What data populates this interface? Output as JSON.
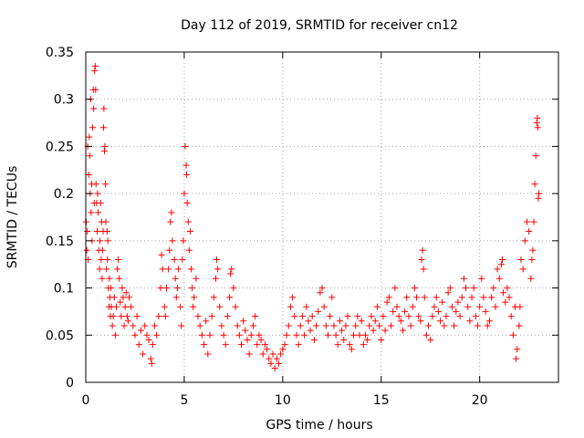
{
  "chart_data": {
    "type": "scatter",
    "title": "Day 112 of 2019, SRMTID for receiver cn12",
    "xlabel": "GPS time / hours",
    "ylabel": "SRMTID / TECUs",
    "xlim": [
      0,
      24
    ],
    "ylim": [
      0,
      0.35
    ],
    "xticks": [
      0,
      5,
      10,
      15,
      20
    ],
    "xtick_labels": [
      "0",
      "5",
      "10",
      "15",
      "20"
    ],
    "yticks": [
      0,
      0.05,
      0.1,
      0.15,
      0.2,
      0.25,
      0.3,
      0.35
    ],
    "ytick_labels": [
      "0",
      "0.05",
      "0.1",
      "0.15",
      "0.2",
      "0.25",
      "0.3",
      "0.35"
    ],
    "grid": true,
    "marker": "+",
    "colors": {
      "series": "#ff0000",
      "grid": "#a0a0a0",
      "axes": "#000000"
    },
    "series": [
      {
        "name": "SRMTID",
        "points": [
          [
            0.02,
            0.17
          ],
          [
            0.05,
            0.14
          ],
          [
            0.08,
            0.16
          ],
          [
            0.1,
            0.25
          ],
          [
            0.12,
            0.13
          ],
          [
            0.15,
            0.22
          ],
          [
            0.18,
            0.26
          ],
          [
            0.2,
            0.24
          ],
          [
            0.22,
            0.2
          ],
          [
            0.25,
            0.3
          ],
          [
            0.27,
            0.18
          ],
          [
            0.3,
            0.21
          ],
          [
            0.32,
            0.15
          ],
          [
            0.35,
            0.27
          ],
          [
            0.38,
            0.31
          ],
          [
            0.4,
            0.29
          ],
          [
            0.43,
            0.19
          ],
          [
            0.45,
            0.33
          ],
          [
            0.48,
            0.335
          ],
          [
            0.5,
            0.31
          ],
          [
            0.52,
            0.21
          ],
          [
            0.55,
            0.19
          ],
          [
            0.58,
            0.16
          ],
          [
            0.6,
            0.2
          ],
          [
            0.63,
            0.18
          ],
          [
            0.66,
            0.14
          ],
          [
            0.7,
            0.12
          ],
          [
            0.72,
            0.15
          ],
          [
            0.75,
            0.19
          ],
          [
            0.78,
            0.13
          ],
          [
            0.8,
            0.17
          ],
          [
            0.83,
            0.11
          ],
          [
            0.85,
            0.14
          ],
          [
            0.88,
            0.16
          ],
          [
            0.9,
            0.27
          ],
          [
            0.92,
            0.29
          ],
          [
            0.95,
            0.245
          ],
          [
            0.97,
            0.25
          ],
          [
            1.0,
            0.21
          ],
          [
            1.02,
            0.17
          ],
          [
            1.05,
            0.12
          ],
          [
            1.08,
            0.16
          ],
          [
            1.1,
            0.13
          ],
          [
            1.12,
            0.15
          ],
          [
            1.15,
            0.1
          ],
          [
            1.18,
            0.08
          ],
          [
            1.2,
            0.11
          ],
          [
            1.22,
            0.09
          ],
          [
            1.25,
            0.07
          ],
          [
            1.28,
            0.1
          ],
          [
            1.3,
            0.08
          ],
          [
            1.35,
            0.06
          ],
          [
            1.4,
            0.07
          ],
          [
            1.45,
            0.09
          ],
          [
            1.5,
            0.05
          ],
          [
            1.55,
            0.08
          ],
          [
            1.6,
            0.12
          ],
          [
            1.65,
            0.13
          ],
          [
            1.7,
            0.11
          ],
          [
            1.75,
            0.085
          ],
          [
            1.8,
            0.07
          ],
          [
            1.85,
            0.1
          ],
          [
            1.9,
            0.09
          ],
          [
            1.95,
            0.06
          ],
          [
            2.0,
            0.08
          ],
          [
            2.05,
            0.095
          ],
          [
            2.1,
            0.07
          ],
          [
            2.15,
            0.065
          ],
          [
            2.2,
            0.09
          ],
          [
            2.3,
            0.08
          ],
          [
            2.4,
            0.06
          ],
          [
            2.5,
            0.05
          ],
          [
            2.6,
            0.07
          ],
          [
            2.7,
            0.04
          ],
          [
            2.8,
            0.055
          ],
          [
            2.9,
            0.03
          ],
          [
            3.0,
            0.06
          ],
          [
            3.1,
            0.05
          ],
          [
            3.2,
            0.045
          ],
          [
            3.3,
            0.025
          ],
          [
            3.35,
            0.02
          ],
          [
            3.4,
            0.04
          ],
          [
            3.5,
            0.06
          ],
          [
            3.6,
            0.05
          ],
          [
            3.7,
            0.07
          ],
          [
            3.8,
            0.1
          ],
          [
            3.85,
            0.135
          ],
          [
            3.9,
            0.12
          ],
          [
            4.0,
            0.08
          ],
          [
            4.05,
            0.07
          ],
          [
            4.1,
            0.1
          ],
          [
            4.2,
            0.12
          ],
          [
            4.25,
            0.14
          ],
          [
            4.3,
            0.17
          ],
          [
            4.35,
            0.18
          ],
          [
            4.4,
            0.15
          ],
          [
            4.5,
            0.13
          ],
          [
            4.55,
            0.11
          ],
          [
            4.6,
            0.09
          ],
          [
            4.65,
            0.1
          ],
          [
            4.7,
            0.12
          ],
          [
            4.8,
            0.08
          ],
          [
            4.85,
            0.06
          ],
          [
            4.9,
            0.13
          ],
          [
            4.95,
            0.15
          ],
          [
            5.0,
            0.2
          ],
          [
            5.05,
            0.25
          ],
          [
            5.1,
            0.23
          ],
          [
            5.12,
            0.22
          ],
          [
            5.15,
            0.19
          ],
          [
            5.2,
            0.17
          ],
          [
            5.25,
            0.14
          ],
          [
            5.3,
            0.16
          ],
          [
            5.35,
            0.12
          ],
          [
            5.4,
            0.1
          ],
          [
            5.45,
            0.08
          ],
          [
            5.5,
            0.09
          ],
          [
            5.6,
            0.11
          ],
          [
            5.7,
            0.07
          ],
          [
            5.8,
            0.06
          ],
          [
            5.9,
            0.05
          ],
          [
            6.0,
            0.04
          ],
          [
            6.1,
            0.065
          ],
          [
            6.2,
            0.03
          ],
          [
            6.3,
            0.05
          ],
          [
            6.4,
            0.07
          ],
          [
            6.5,
            0.09
          ],
          [
            6.6,
            0.11
          ],
          [
            6.65,
            0.13
          ],
          [
            6.7,
            0.12
          ],
          [
            6.8,
            0.08
          ],
          [
            6.9,
            0.06
          ],
          [
            7.0,
            0.05
          ],
          [
            7.1,
            0.04
          ],
          [
            7.2,
            0.07
          ],
          [
            7.3,
            0.09
          ],
          [
            7.35,
            0.115
          ],
          [
            7.4,
            0.12
          ],
          [
            7.5,
            0.1
          ],
          [
            7.6,
            0.08
          ],
          [
            7.7,
            0.06
          ],
          [
            7.8,
            0.05
          ],
          [
            7.9,
            0.04
          ],
          [
            8.0,
            0.065
          ],
          [
            8.1,
            0.055
          ],
          [
            8.2,
            0.045
          ],
          [
            8.3,
            0.03
          ],
          [
            8.4,
            0.05
          ],
          [
            8.5,
            0.06
          ],
          [
            8.6,
            0.07
          ],
          [
            8.7,
            0.04
          ],
          [
            8.8,
            0.05
          ],
          [
            8.9,
            0.045
          ],
          [
            9.0,
            0.03
          ],
          [
            9.1,
            0.04
          ],
          [
            9.2,
            0.035
          ],
          [
            9.3,
            0.025
          ],
          [
            9.4,
            0.02
          ],
          [
            9.5,
            0.03
          ],
          [
            9.6,
            0.015
          ],
          [
            9.7,
            0.025
          ],
          [
            9.8,
            0.02
          ],
          [
            9.9,
            0.03
          ],
          [
            10.0,
            0.035
          ],
          [
            10.1,
            0.04
          ],
          [
            10.2,
            0.05
          ],
          [
            10.3,
            0.06
          ],
          [
            10.4,
            0.08
          ],
          [
            10.5,
            0.09
          ],
          [
            10.6,
            0.07
          ],
          [
            10.7,
            0.05
          ],
          [
            10.8,
            0.04
          ],
          [
            10.9,
            0.06
          ],
          [
            11.0,
            0.07
          ],
          [
            11.1,
            0.05
          ],
          [
            11.2,
            0.08
          ],
          [
            11.3,
            0.065
          ],
          [
            11.4,
            0.055
          ],
          [
            11.5,
            0.07
          ],
          [
            11.6,
            0.045
          ],
          [
            11.7,
            0.06
          ],
          [
            11.8,
            0.075
          ],
          [
            11.9,
            0.095
          ],
          [
            12.0,
            0.1
          ],
          [
            12.1,
            0.08
          ],
          [
            12.2,
            0.06
          ],
          [
            12.3,
            0.05
          ],
          [
            12.4,
            0.07
          ],
          [
            12.5,
            0.09
          ],
          [
            12.6,
            0.06
          ],
          [
            12.7,
            0.05
          ],
          [
            12.8,
            0.04
          ],
          [
            12.9,
            0.065
          ],
          [
            13.0,
            0.055
          ],
          [
            13.1,
            0.045
          ],
          [
            13.2,
            0.06
          ],
          [
            13.3,
            0.07
          ],
          [
            13.4,
            0.04
          ],
          [
            13.5,
            0.035
          ],
          [
            13.6,
            0.05
          ],
          [
            13.7,
            0.06
          ],
          [
            13.8,
            0.07
          ],
          [
            13.9,
            0.05
          ],
          [
            14.0,
            0.065
          ],
          [
            14.1,
            0.04
          ],
          [
            14.2,
            0.05
          ],
          [
            14.3,
            0.045
          ],
          [
            14.4,
            0.06
          ],
          [
            14.5,
            0.07
          ],
          [
            14.6,
            0.055
          ],
          [
            14.7,
            0.065
          ],
          [
            14.8,
            0.08
          ],
          [
            14.9,
            0.06
          ],
          [
            15.0,
            0.045
          ],
          [
            15.1,
            0.07
          ],
          [
            15.2,
            0.055
          ],
          [
            15.3,
            0.085
          ],
          [
            15.4,
            0.09
          ],
          [
            15.5,
            0.06
          ],
          [
            15.6,
            0.075
          ],
          [
            15.7,
            0.1
          ],
          [
            15.8,
            0.08
          ],
          [
            15.9,
            0.07
          ],
          [
            16.0,
            0.065
          ],
          [
            16.1,
            0.055
          ],
          [
            16.2,
            0.075
          ],
          [
            16.3,
            0.09
          ],
          [
            16.4,
            0.07
          ],
          [
            16.5,
            0.06
          ],
          [
            16.6,
            0.08
          ],
          [
            16.7,
            0.1
          ],
          [
            16.8,
            0.09
          ],
          [
            16.9,
            0.07
          ],
          [
            17.0,
            0.065
          ],
          [
            17.05,
            0.13
          ],
          [
            17.1,
            0.14
          ],
          [
            17.15,
            0.12
          ],
          [
            17.2,
            0.09
          ],
          [
            17.3,
            0.05
          ],
          [
            17.4,
            0.06
          ],
          [
            17.5,
            0.045
          ],
          [
            17.6,
            0.07
          ],
          [
            17.7,
            0.08
          ],
          [
            17.8,
            0.09
          ],
          [
            17.9,
            0.075
          ],
          [
            18.0,
            0.065
          ],
          [
            18.1,
            0.085
          ],
          [
            18.2,
            0.06
          ],
          [
            18.3,
            0.07
          ],
          [
            18.4,
            0.095
          ],
          [
            18.5,
            0.1
          ],
          [
            18.6,
            0.08
          ],
          [
            18.7,
            0.06
          ],
          [
            18.8,
            0.075
          ],
          [
            18.9,
            0.085
          ],
          [
            19.0,
            0.07
          ],
          [
            19.1,
            0.09
          ],
          [
            19.2,
            0.11
          ],
          [
            19.3,
            0.1
          ],
          [
            19.4,
            0.08
          ],
          [
            19.5,
            0.065
          ],
          [
            19.6,
            0.09
          ],
          [
            19.7,
            0.1
          ],
          [
            19.8,
            0.07
          ],
          [
            19.9,
            0.06
          ],
          [
            20.0,
            0.08
          ],
          [
            20.1,
            0.11
          ],
          [
            20.2,
            0.09
          ],
          [
            20.3,
            0.075
          ],
          [
            20.4,
            0.06
          ],
          [
            20.5,
            0.065
          ],
          [
            20.6,
            0.09
          ],
          [
            20.7,
            0.1
          ],
          [
            20.8,
            0.08
          ],
          [
            20.9,
            0.12
          ],
          [
            21.0,
            0.11
          ],
          [
            21.1,
            0.125
          ],
          [
            21.15,
            0.13
          ],
          [
            21.2,
            0.095
          ],
          [
            21.3,
            0.085
          ],
          [
            21.4,
            0.1
          ],
          [
            21.5,
            0.09
          ],
          [
            21.6,
            0.07
          ],
          [
            21.7,
            0.05
          ],
          [
            21.8,
            0.08
          ],
          [
            21.85,
            0.025
          ],
          [
            21.9,
            0.035
          ],
          [
            22.0,
            0.06
          ],
          [
            22.05,
            0.08
          ],
          [
            22.1,
            0.13
          ],
          [
            22.2,
            0.12
          ],
          [
            22.3,
            0.15
          ],
          [
            22.4,
            0.17
          ],
          [
            22.5,
            0.16
          ],
          [
            22.6,
            0.11
          ],
          [
            22.65,
            0.13
          ],
          [
            22.7,
            0.14
          ],
          [
            22.75,
            0.17
          ],
          [
            22.8,
            0.21
          ],
          [
            22.85,
            0.24
          ],
          [
            22.9,
            0.275
          ],
          [
            22.93,
            0.28
          ],
          [
            22.95,
            0.27
          ],
          [
            22.98,
            0.195
          ],
          [
            23.0,
            0.2
          ]
        ]
      }
    ]
  }
}
